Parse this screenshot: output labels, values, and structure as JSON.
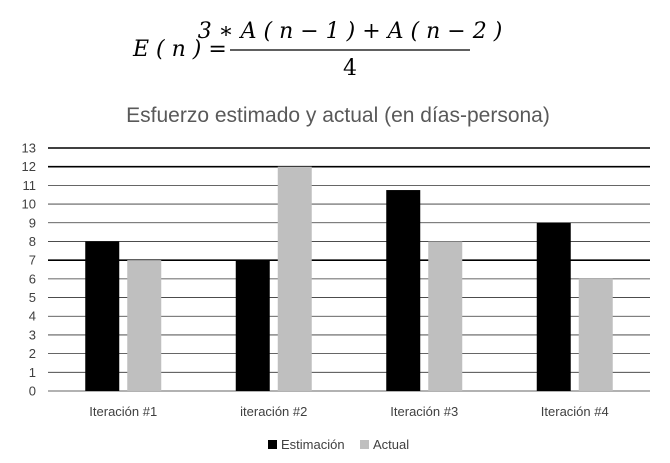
{
  "formula": {
    "lhs": "E ( n ) =",
    "numerator": "3 ∗ A ( n − 1 ) + A ( n − 2 )",
    "denominator": "4"
  },
  "chart_data": {
    "type": "bar",
    "title": "Esfuerzo estimado y actual (en días-persona)",
    "categories": [
      "Iteración #1",
      "iteración #2",
      "Iteración #3",
      "Iteración #4"
    ],
    "series": [
      {
        "name": "Estimación",
        "values": [
          8,
          7,
          10.75,
          9
        ],
        "color": "#000000"
      },
      {
        "name": "Actual",
        "values": [
          7,
          12,
          8,
          6
        ],
        "color": "#bfbfbf"
      }
    ],
    "xlabel": "",
    "ylabel": "",
    "ylim": [
      0,
      13
    ],
    "yticks": [
      0,
      1,
      2,
      3,
      4,
      5,
      6,
      7,
      8,
      9,
      10,
      11,
      12,
      13
    ],
    "grid": true,
    "legend_position": "bottom"
  }
}
